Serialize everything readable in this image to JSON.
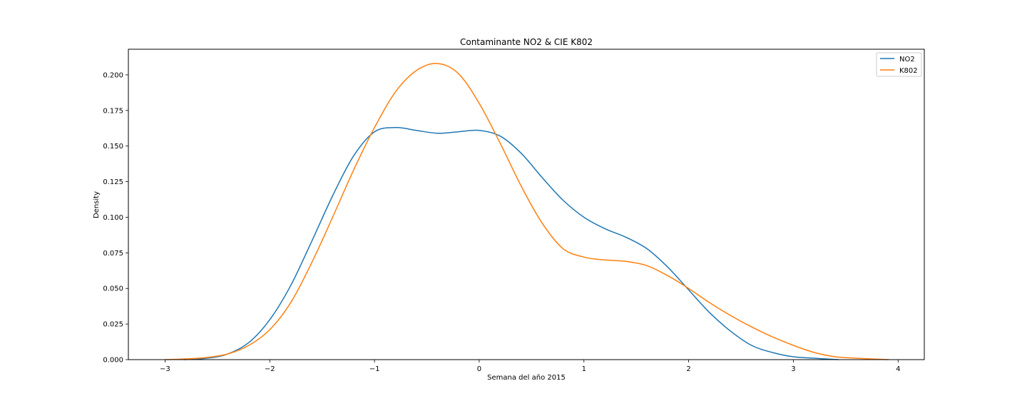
{
  "chart_data": {
    "type": "line",
    "title": "Contaminante NO2 & CIE K802",
    "xlabel": "Semana del año 2015",
    "ylabel": "Density",
    "xlim": [
      -3.35,
      4.25
    ],
    "ylim": [
      0,
      0.218
    ],
    "xticks": [
      -3,
      -2,
      -1,
      0,
      1,
      2,
      3,
      4
    ],
    "xtick_labels": [
      "−3",
      "−2",
      "−1",
      "0",
      "1",
      "2",
      "3",
      "4"
    ],
    "yticks": [
      0,
      0.025,
      0.05,
      0.075,
      0.1,
      0.125,
      0.15,
      0.175,
      0.2
    ],
    "ytick_labels": [
      "0.000",
      "0.025",
      "0.050",
      "0.075",
      "0.100",
      "0.125",
      "0.150",
      "0.175",
      "0.200"
    ],
    "grid": false,
    "legend_position": "top-right",
    "series": [
      {
        "name": "NO2",
        "color": "#1f77b4",
        "x": [
          -2.82,
          -2.6,
          -2.4,
          -2.2,
          -2.0,
          -1.8,
          -1.6,
          -1.4,
          -1.2,
          -1.0,
          -0.8,
          -0.6,
          -0.4,
          -0.2,
          0.0,
          0.2,
          0.4,
          0.6,
          0.8,
          1.0,
          1.2,
          1.4,
          1.6,
          1.8,
          2.0,
          2.2,
          2.4,
          2.6,
          2.8,
          3.0,
          3.2,
          3.43
        ],
        "y": [
          0.0,
          0.001,
          0.004,
          0.012,
          0.028,
          0.052,
          0.083,
          0.115,
          0.143,
          0.16,
          0.163,
          0.161,
          0.159,
          0.16,
          0.161,
          0.157,
          0.145,
          0.128,
          0.112,
          0.1,
          0.092,
          0.086,
          0.078,
          0.065,
          0.049,
          0.033,
          0.02,
          0.01,
          0.005,
          0.002,
          0.001,
          0.0
        ]
      },
      {
        "name": "K802",
        "color": "#ff7f0e",
        "x": [
          -3.0,
          -2.8,
          -2.6,
          -2.4,
          -2.2,
          -2.0,
          -1.8,
          -1.6,
          -1.4,
          -1.2,
          -1.0,
          -0.8,
          -0.6,
          -0.4,
          -0.2,
          0.0,
          0.2,
          0.4,
          0.6,
          0.8,
          1.0,
          1.2,
          1.4,
          1.6,
          1.8,
          2.0,
          2.2,
          2.4,
          2.6,
          2.8,
          3.0,
          3.2,
          3.4,
          3.6,
          3.91
        ],
        "y": [
          0.0,
          0.0005,
          0.0015,
          0.004,
          0.01,
          0.021,
          0.04,
          0.068,
          0.1,
          0.133,
          0.163,
          0.188,
          0.203,
          0.208,
          0.201,
          0.18,
          0.152,
          0.122,
          0.096,
          0.078,
          0.072,
          0.07,
          0.069,
          0.066,
          0.059,
          0.05,
          0.04,
          0.031,
          0.023,
          0.016,
          0.01,
          0.005,
          0.002,
          0.001,
          0.0
        ]
      }
    ]
  }
}
